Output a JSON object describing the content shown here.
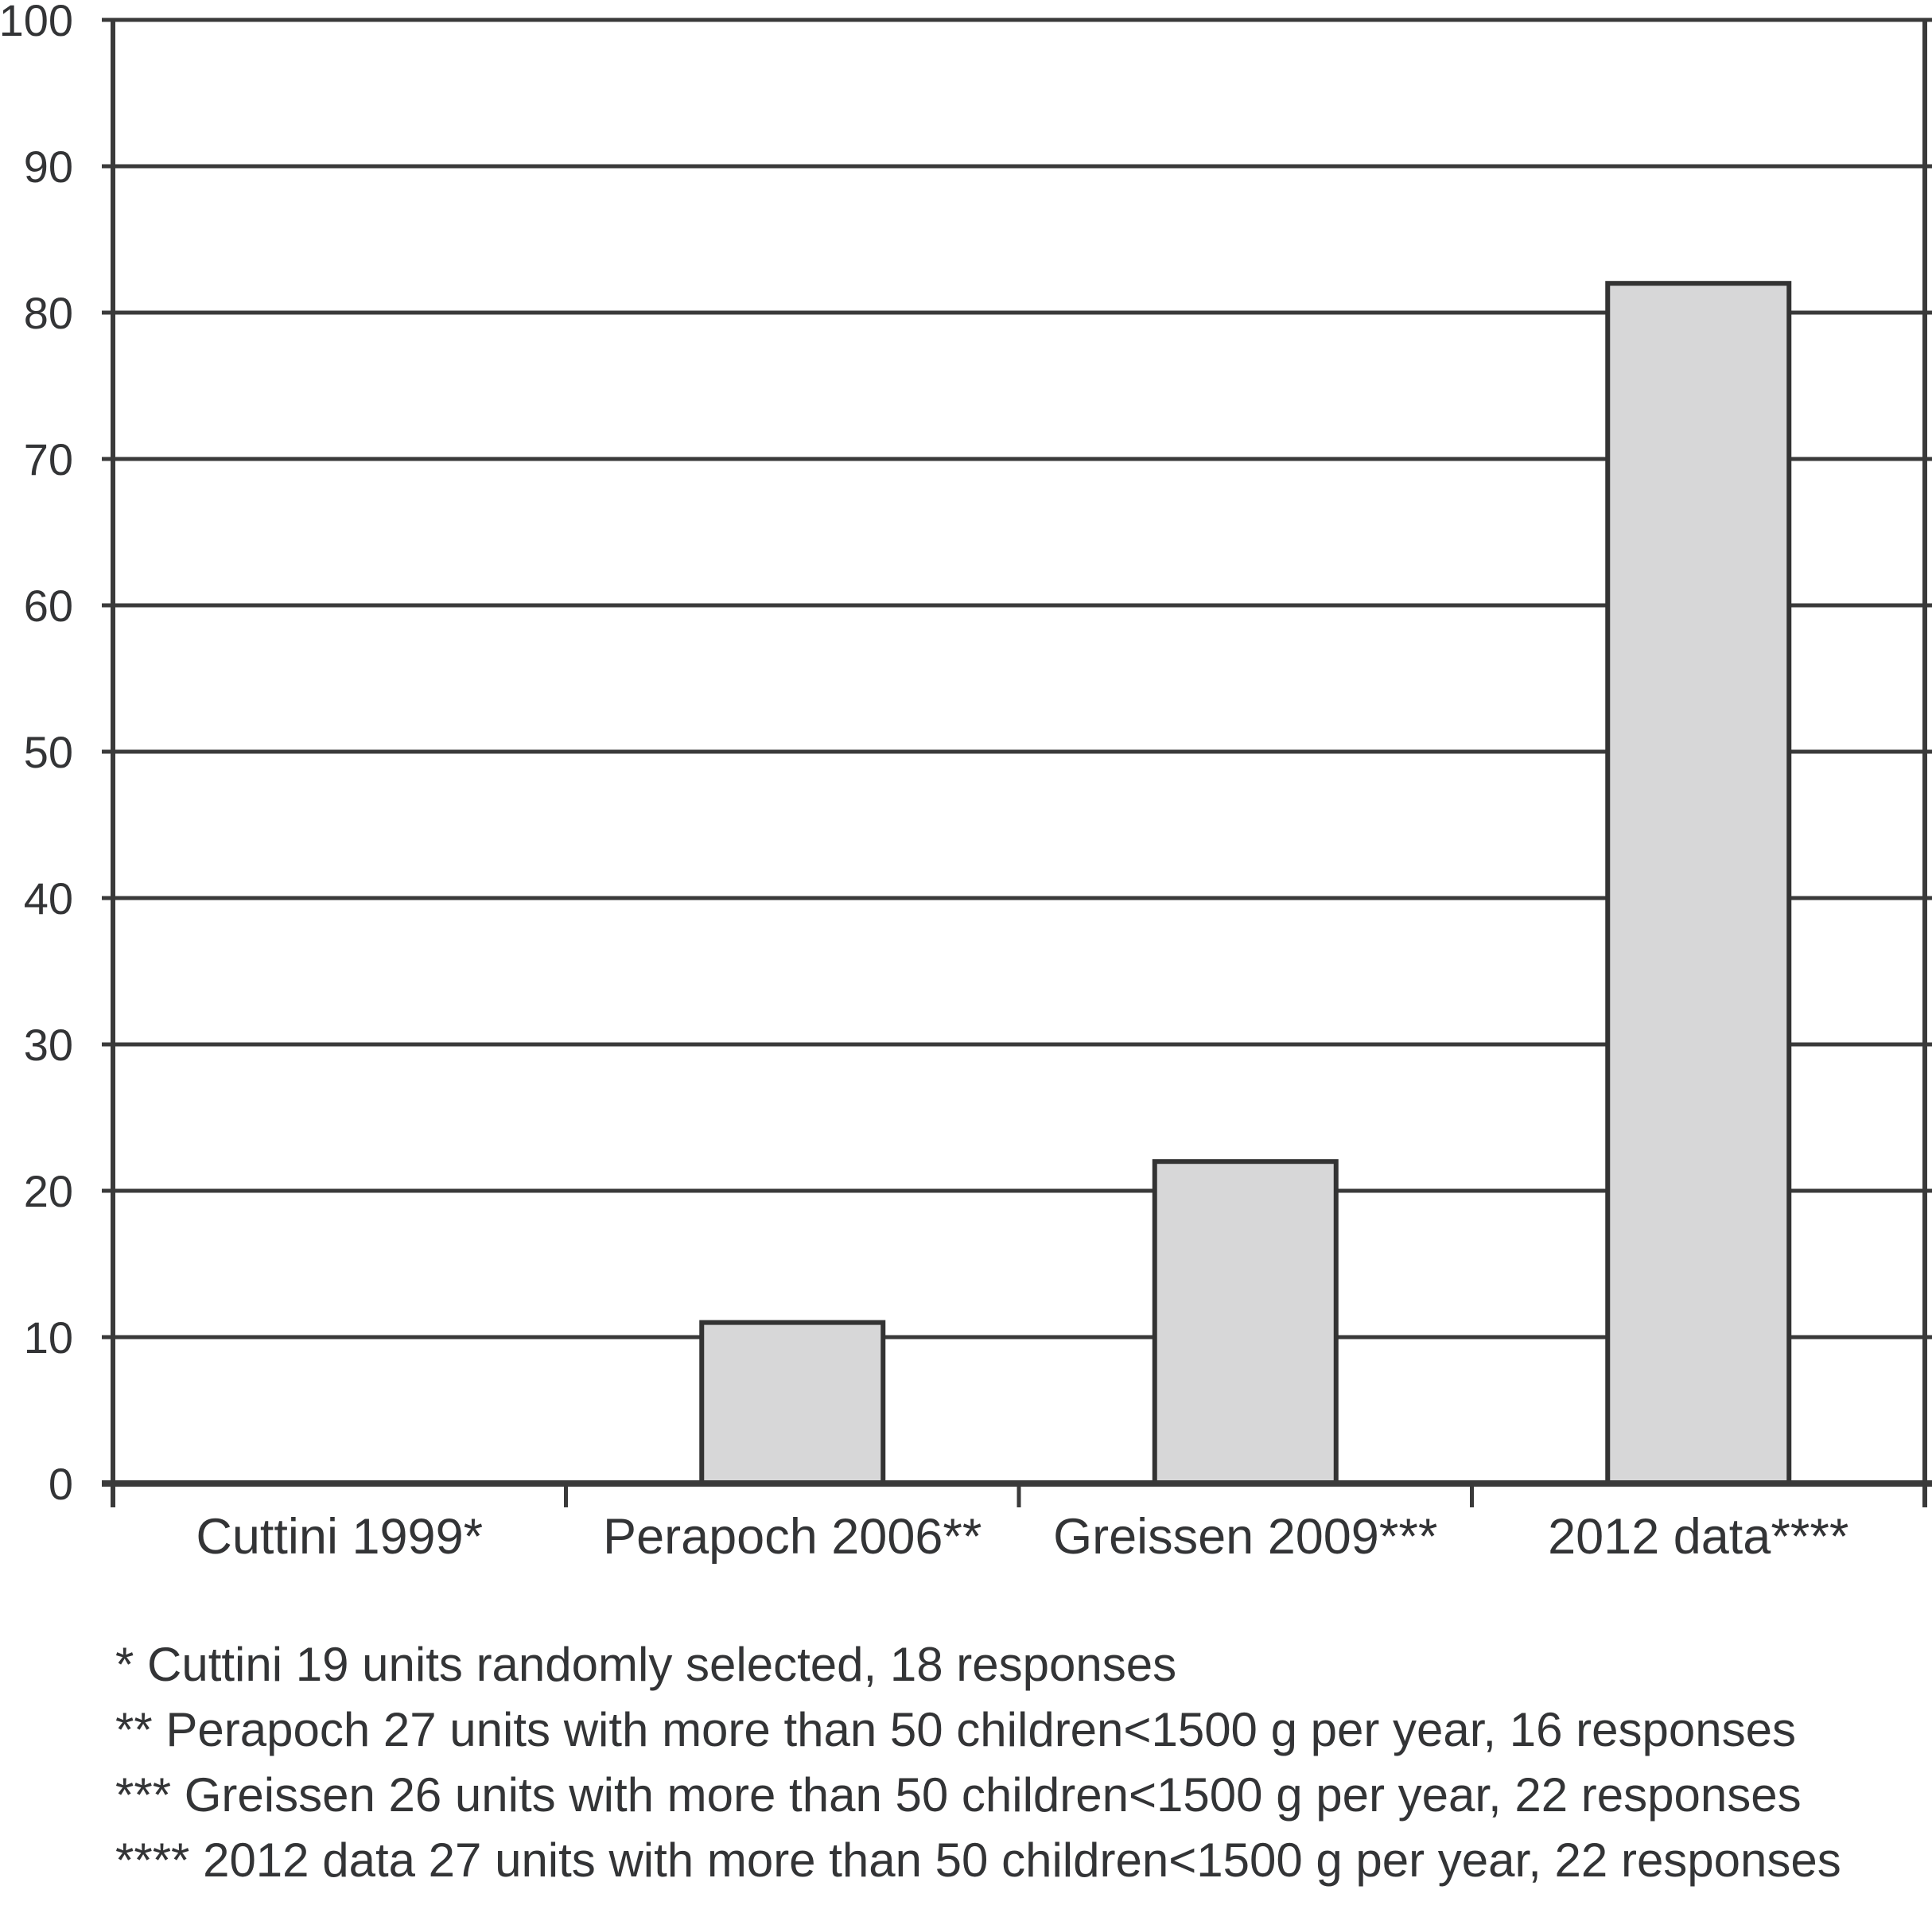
{
  "chart_data": {
    "type": "bar",
    "title": "",
    "xlabel": "",
    "ylabel": "",
    "categories": [
      "Cuttini 1999*",
      "Perapoch 2006**",
      "Greissen 2009***",
      "2012 data****"
    ],
    "values": [
      0,
      11,
      22,
      82
    ],
    "ylim": [
      0,
      100
    ],
    "yticks": [
      0,
      10,
      20,
      30,
      40,
      50,
      60,
      70,
      80,
      90,
      100
    ],
    "grid": "horizontal",
    "legend": "none",
    "bar_fill_color": "#d7d7d8",
    "bar_border_color": "#333333",
    "axis_color": "#3a3a3a",
    "text_color": "#333436"
  },
  "footnotes": {
    "0": "* Cuttini 19 units randomly selected, 18 responses",
    "1": "** Perapoch 27 units with more than 50 children<1500 g per year, 16 responses",
    "2": "*** Greissen 26 units with more than 50 children<1500 g per year, 22 responses",
    "3": "**** 2012 data 27 units with more than 50 children<1500 g per year, 22 responses"
  }
}
